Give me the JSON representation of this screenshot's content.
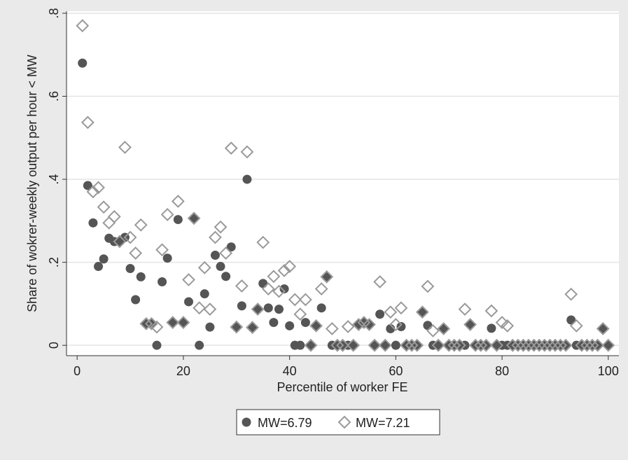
{
  "chart_data": {
    "type": "scatter",
    "x_label": "Percentile of worker FE",
    "y_label": "Share of wokrer-weekly output per hour < MW",
    "x": [
      1,
      2,
      3,
      4,
      5,
      6,
      7,
      8,
      9,
      10,
      11,
      12,
      13,
      14,
      15,
      16,
      17,
      18,
      19,
      20,
      21,
      22,
      23,
      24,
      25,
      26,
      27,
      28,
      29,
      30,
      31,
      32,
      33,
      34,
      35,
      36,
      37,
      38,
      39,
      40,
      41,
      42,
      43,
      44,
      45,
      46,
      47,
      48,
      49,
      50,
      51,
      52,
      53,
      54,
      55,
      56,
      57,
      58,
      59,
      60,
      61,
      62,
      63,
      64,
      65,
      66,
      67,
      68,
      69,
      70,
      71,
      72,
      73,
      74,
      75,
      76,
      77,
      78,
      79,
      80,
      81,
      82,
      83,
      84,
      85,
      86,
      87,
      88,
      89,
      90,
      91,
      92,
      93,
      94,
      95,
      96,
      97,
      98,
      99,
      100
    ],
    "series": [
      {
        "name": "MW=6.79",
        "color": "#555555",
        "marker": "circle",
        "values": [
          0.68,
          0.385,
          0.295,
          0.19,
          0.208,
          0.258,
          0.25,
          0.25,
          0.26,
          0.185,
          0.11,
          0.165,
          0.052,
          0.052,
          0,
          0.153,
          0.21,
          0.055,
          0.303,
          0.055,
          0.105,
          0.306,
          0,
          0.124,
          0.044,
          0.217,
          0.19,
          0.166,
          0.237,
          0.044,
          0.095,
          0.4,
          0.043,
          0.087,
          0.149,
          0.09,
          0.055,
          0.087,
          0.136,
          0.047,
          0,
          0,
          0.055,
          0,
          0.047,
          0.09,
          0.165,
          0,
          0,
          0,
          0,
          0,
          0.05,
          0.055,
          0.05,
          0,
          0.075,
          0,
          0.04,
          0,
          0.045,
          0,
          0,
          0,
          0.08,
          0.048,
          0,
          0,
          0.04,
          0,
          0,
          0,
          0,
          0.05,
          0,
          0,
          0,
          0.041,
          0,
          0,
          0,
          0,
          0,
          0,
          0,
          0,
          0,
          0,
          0,
          0,
          0,
          0,
          0.061,
          0,
          0,
          0,
          0,
          0,
          0.04,
          0
        ]
      },
      {
        "name": "MW=7.21",
        "color": "#9a9a9a",
        "marker": "diamond-hollow",
        "values": [
          0.77,
          0.537,
          0.37,
          0.38,
          0.333,
          0.295,
          0.31,
          0.25,
          0.477,
          0.26,
          0.222,
          0.29,
          0.052,
          0.052,
          0.044,
          0.23,
          0.315,
          0.055,
          0.347,
          0.055,
          0.158,
          0.306,
          0.09,
          0.187,
          0.087,
          0.26,
          0.285,
          0.222,
          0.475,
          0.044,
          0.143,
          0.466,
          0.043,
          0.087,
          0.248,
          0.136,
          0.166,
          0.13,
          0.18,
          0.19,
          0.11,
          0.075,
          0.11,
          0,
          0.047,
          0.136,
          0.165,
          0.04,
          0,
          0,
          0.045,
          0,
          0.05,
          0.055,
          0.05,
          0,
          0.153,
          0,
          0.08,
          0.05,
          0.09,
          0,
          0,
          0,
          0.08,
          0.142,
          0.035,
          0,
          0.04,
          0,
          0,
          0,
          0.087,
          0.05,
          0,
          0,
          0,
          0.083,
          0,
          0.055,
          0.047,
          0,
          0,
          0,
          0,
          0,
          0,
          0,
          0,
          0,
          0,
          0,
          0.123,
          0.047,
          0,
          0,
          0,
          0,
          0.04,
          0
        ]
      }
    ],
    "xlim": [
      -2,
      102
    ],
    "xticks": [
      0,
      20,
      40,
      60,
      80,
      100
    ],
    "ylim": [
      -0.025,
      0.805
    ],
    "yticks": [
      0,
      {
        "value": 0.2,
        "label": ".2"
      },
      {
        "value": 0.4,
        "label": ".4"
      },
      {
        "value": 0.6,
        "label": ".6"
      },
      {
        "value": 0.8,
        "label": ".8"
      }
    ],
    "grid": true,
    "legend": "bottom"
  }
}
